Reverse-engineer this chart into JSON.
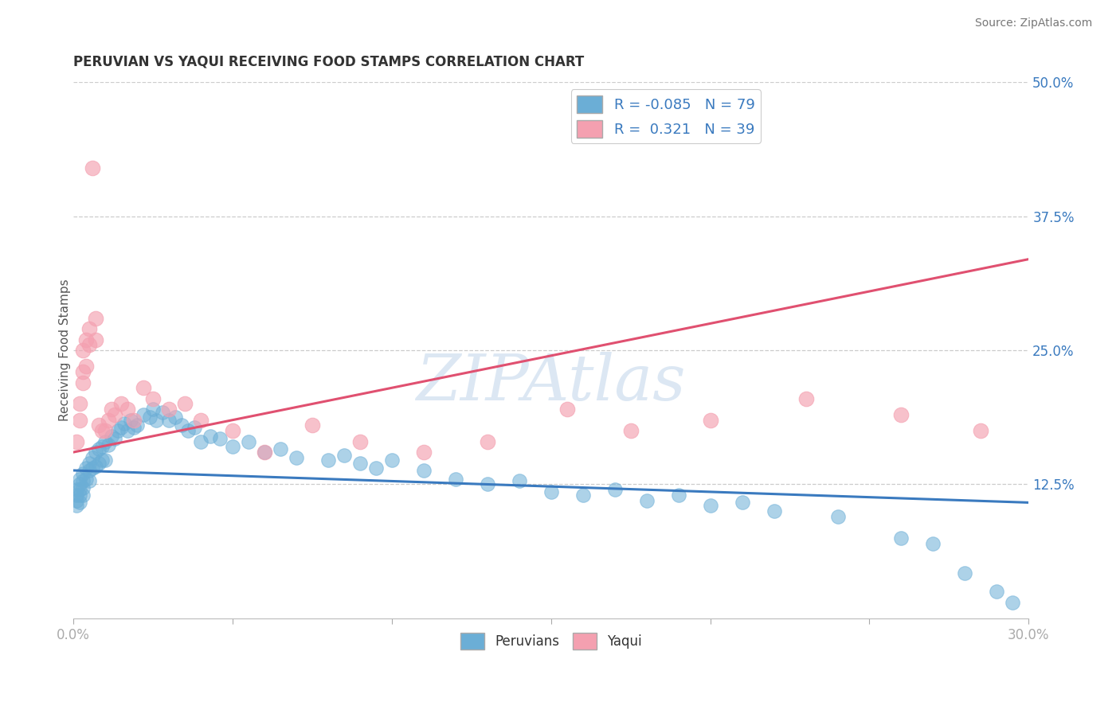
{
  "title": "PERUVIAN VS YAQUI RECEIVING FOOD STAMPS CORRELATION CHART",
  "source_text": "Source: ZipAtlas.com",
  "ylabel": "Receiving Food Stamps",
  "xlim": [
    0.0,
    0.3
  ],
  "ylim": [
    0.0,
    0.5
  ],
  "xticks": [
    0.0,
    0.05,
    0.1,
    0.15,
    0.2,
    0.25,
    0.3
  ],
  "xticklabels": [
    "0.0%",
    "",
    "",
    "",
    "",
    "",
    "30.0%"
  ],
  "yticks_right": [
    0.125,
    0.25,
    0.375,
    0.5
  ],
  "ytick_right_labels": [
    "12.5%",
    "25.0%",
    "37.5%",
    "50.0%"
  ],
  "peruvian_color": "#6baed6",
  "yaqui_color": "#f4a0b0",
  "peruvian_line_color": "#3a7abf",
  "yaqui_line_color": "#e05070",
  "legend_R_peruvian": "-0.085",
  "legend_N_peruvian": "79",
  "legend_R_yaqui": "0.321",
  "legend_N_yaqui": "39",
  "watermark": "ZIPAtlas",
  "background_color": "#ffffff",
  "grid_color": "#cccccc",
  "peruvian_line_x": [
    0.0,
    0.3
  ],
  "peruvian_line_y": [
    0.138,
    0.108
  ],
  "yaqui_line_x": [
    0.0,
    0.3
  ],
  "yaqui_line_y": [
    0.155,
    0.335
  ],
  "peruvian_x": [
    0.001,
    0.001,
    0.001,
    0.001,
    0.002,
    0.002,
    0.002,
    0.002,
    0.002,
    0.003,
    0.003,
    0.003,
    0.003,
    0.004,
    0.004,
    0.005,
    0.005,
    0.005,
    0.006,
    0.006,
    0.007,
    0.007,
    0.008,
    0.008,
    0.009,
    0.009,
    0.01,
    0.01,
    0.011,
    0.012,
    0.013,
    0.014,
    0.015,
    0.016,
    0.017,
    0.018,
    0.019,
    0.02,
    0.022,
    0.024,
    0.025,
    0.026,
    0.028,
    0.03,
    0.032,
    0.034,
    0.036,
    0.038,
    0.04,
    0.043,
    0.046,
    0.05,
    0.055,
    0.06,
    0.065,
    0.07,
    0.08,
    0.085,
    0.09,
    0.095,
    0.1,
    0.11,
    0.12,
    0.13,
    0.14,
    0.15,
    0.16,
    0.17,
    0.18,
    0.19,
    0.2,
    0.21,
    0.22,
    0.24,
    0.26,
    0.27,
    0.28,
    0.29,
    0.295
  ],
  "peruvian_y": [
    0.12,
    0.115,
    0.11,
    0.105,
    0.13,
    0.125,
    0.12,
    0.115,
    0.108,
    0.135,
    0.128,
    0.122,
    0.115,
    0.14,
    0.13,
    0.145,
    0.138,
    0.128,
    0.15,
    0.14,
    0.155,
    0.142,
    0.158,
    0.145,
    0.16,
    0.148,
    0.165,
    0.148,
    0.162,
    0.17,
    0.168,
    0.175,
    0.178,
    0.182,
    0.175,
    0.185,
    0.178,
    0.18,
    0.19,
    0.188,
    0.195,
    0.185,
    0.192,
    0.185,
    0.188,
    0.18,
    0.175,
    0.178,
    0.165,
    0.17,
    0.168,
    0.16,
    0.165,
    0.155,
    0.158,
    0.15,
    0.148,
    0.152,
    0.145,
    0.14,
    0.148,
    0.138,
    0.13,
    0.125,
    0.128,
    0.118,
    0.115,
    0.12,
    0.11,
    0.115,
    0.105,
    0.108,
    0.1,
    0.095,
    0.075,
    0.07,
    0.042,
    0.025,
    0.015
  ],
  "yaqui_x": [
    0.001,
    0.002,
    0.002,
    0.003,
    0.003,
    0.003,
    0.004,
    0.004,
    0.005,
    0.005,
    0.006,
    0.007,
    0.007,
    0.008,
    0.009,
    0.01,
    0.011,
    0.012,
    0.013,
    0.015,
    0.017,
    0.019,
    0.022,
    0.025,
    0.03,
    0.035,
    0.04,
    0.05,
    0.06,
    0.075,
    0.09,
    0.11,
    0.13,
    0.155,
    0.175,
    0.2,
    0.23,
    0.26,
    0.285
  ],
  "yaqui_y": [
    0.165,
    0.2,
    0.185,
    0.25,
    0.23,
    0.22,
    0.26,
    0.235,
    0.27,
    0.255,
    0.42,
    0.28,
    0.26,
    0.18,
    0.175,
    0.175,
    0.185,
    0.195,
    0.19,
    0.2,
    0.195,
    0.185,
    0.215,
    0.205,
    0.195,
    0.2,
    0.185,
    0.175,
    0.155,
    0.18,
    0.165,
    0.155,
    0.165,
    0.195,
    0.175,
    0.185,
    0.205,
    0.19,
    0.175
  ]
}
